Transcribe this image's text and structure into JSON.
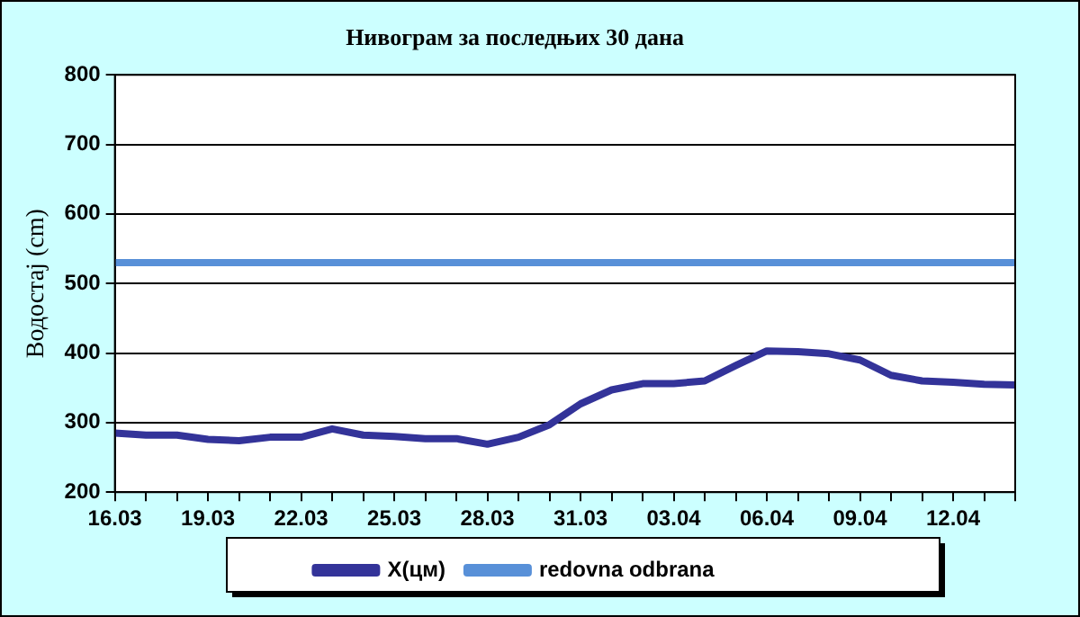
{
  "chart_data": {
    "type": "line",
    "title": "Нивограм за последњих 30 дана",
    "ylabel": "Водостај (cm)",
    "categories": [
      "16.03",
      null,
      null,
      "19.03",
      null,
      null,
      "22.03",
      null,
      null,
      "25.03",
      null,
      null,
      "28.03",
      null,
      null,
      "31.03",
      null,
      null,
      "03.04",
      null,
      null,
      "06.04",
      null,
      null,
      "09.04",
      null,
      null,
      "12.04",
      null,
      null
    ],
    "series": [
      {
        "name": "X(цм)",
        "color": "#333399",
        "values": [
          285,
          282,
          282,
          276,
          274,
          279,
          279,
          291,
          282,
          280,
          277,
          277,
          269,
          279,
          297,
          327,
          347,
          356,
          356,
          360,
          382,
          403,
          402,
          399,
          390,
          368,
          360,
          358,
          355,
          354
        ]
      },
      {
        "name": "redovna odbrana",
        "color": "#5890d8",
        "values": [
          530,
          530,
          530,
          530,
          530,
          530,
          530,
          530,
          530,
          530,
          530,
          530,
          530,
          530,
          530,
          530,
          530,
          530,
          530,
          530,
          530,
          530,
          530,
          530,
          530,
          530,
          530,
          530,
          530,
          530
        ]
      }
    ],
    "ylim": [
      200,
      800
    ],
    "yticks": [
      200,
      300,
      400,
      500,
      600,
      700,
      800
    ],
    "grid": "y",
    "legend": "bottom"
  }
}
